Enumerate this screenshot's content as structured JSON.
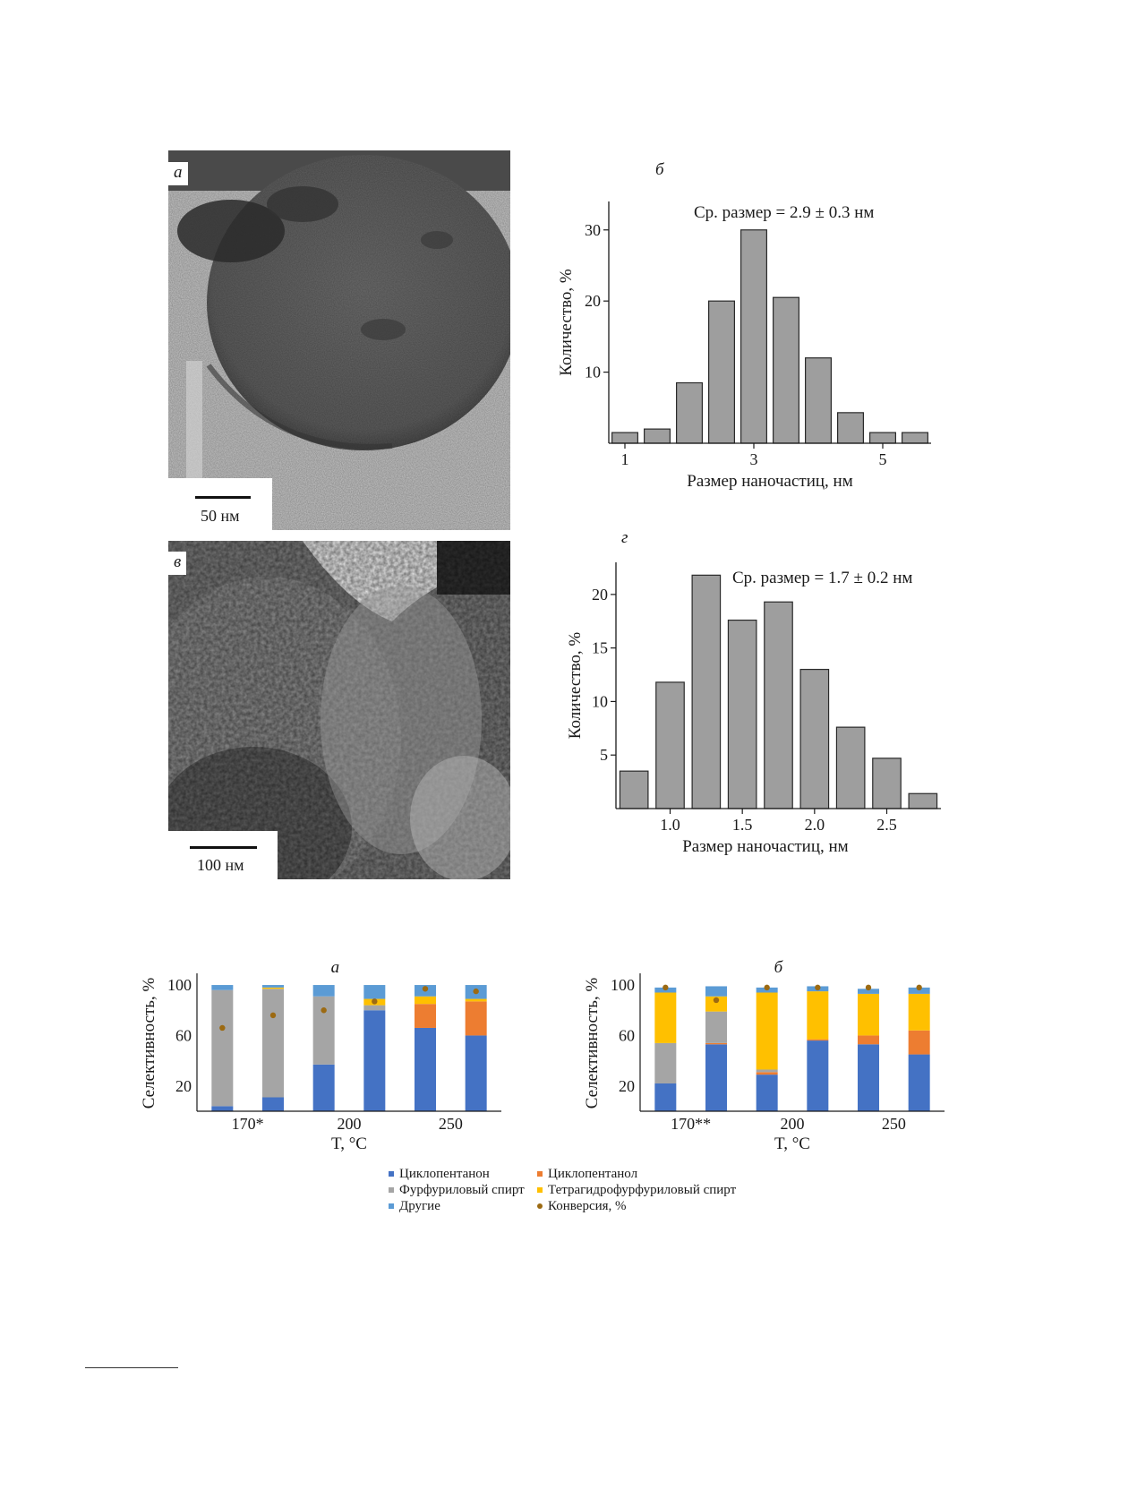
{
  "figure1": {
    "panels": [
      {
        "letter": "а",
        "scale_label": "50 нм"
      },
      {
        "letter": "б"
      },
      {
        "letter": "в",
        "scale_label": "100 нм"
      },
      {
        "letter": "г"
      }
    ]
  },
  "figure2": {
    "legend": [
      {
        "label": "Циклопентанон",
        "color": "#4472c4",
        "kind": "bar"
      },
      {
        "label": "Циклопентанол",
        "color": "#ed7d31",
        "kind": "bar"
      },
      {
        "label": "Фурфуриловый спирт",
        "color": "#a5a5a5",
        "kind": "bar"
      },
      {
        "label": "Тетрагидрофурфуриловый спирт",
        "color": "#ffc000",
        "kind": "bar"
      },
      {
        "label": "Другие",
        "color": "#5b9bd5",
        "kind": "bar"
      },
      {
        "label": "Конверсия, %",
        "color": "#9c6a12",
        "kind": "dot"
      }
    ]
  },
  "chart_data": [
    {
      "id": "hist-b",
      "type": "bar",
      "panel_letter": "б",
      "annotation": "Ср. размер = 2.9 ± 0.3 нм",
      "xlabel": "Размер наночастиц, нм",
      "ylabel": "Количество, %",
      "x": [
        1.0,
        1.5,
        2.0,
        2.5,
        3.0,
        3.5,
        4.0,
        4.5,
        5.0,
        5.5
      ],
      "values": [
        1.5,
        2.0,
        8.5,
        20.0,
        30.0,
        20.5,
        12.0,
        4.3,
        1.5,
        1.5
      ],
      "xticks": [
        1,
        3,
        5
      ],
      "yticks": [
        10,
        20,
        30
      ],
      "xlim": [
        0.75,
        5.75
      ],
      "ylim": [
        0,
        34
      ],
      "bar_color": "#9e9e9e"
    },
    {
      "id": "hist-g",
      "type": "bar",
      "panel_letter": "г",
      "annotation": "Ср. размер = 1.7 ± 0.2 нм",
      "xlabel": "Размер наночастиц, нм",
      "ylabel": "Количество, %",
      "x": [
        0.75,
        1.0,
        1.25,
        1.5,
        1.75,
        2.0,
        2.25,
        2.5,
        2.75
      ],
      "values": [
        3.5,
        11.8,
        21.8,
        17.6,
        19.3,
        13.0,
        7.6,
        4.7,
        1.4
      ],
      "xticks": [
        "1.0",
        "1.5",
        "2.0",
        "2.5"
      ],
      "yticks": [
        5,
        10,
        15,
        20
      ],
      "xlim": [
        0.625,
        2.875
      ],
      "ylim": [
        0,
        23
      ],
      "bar_color": "#9e9e9e"
    },
    {
      "id": "sel-a",
      "type": "bar",
      "stacked": true,
      "panel_letter": "а",
      "xlabel": "T, °C",
      "ylabel": "Селективность, %",
      "xtick_labels": [
        "170*",
        "200",
        "250"
      ],
      "yticks": [
        20,
        60,
        100
      ],
      "ylim": [
        0,
        105
      ],
      "n_bars": 6,
      "series": [
        {
          "name": "Циклопентанон",
          "values": [
            4,
            11,
            37,
            80,
            66,
            60
          ]
        },
        {
          "name": "Циклопентанол",
          "values": [
            0,
            0,
            0,
            0,
            19,
            27
          ]
        },
        {
          "name": "Фурфуриловый спирт",
          "values": [
            92,
            86,
            54,
            4,
            0,
            0
          ]
        },
        {
          "name": "Тетрагидрофурфуриловый спирт",
          "values": [
            0,
            1,
            0,
            5,
            6,
            2
          ]
        },
        {
          "name": "Другие",
          "values": [
            4,
            2,
            9,
            11,
            9,
            11
          ]
        }
      ],
      "conversion": [
        66,
        76,
        80,
        87,
        97,
        95
      ]
    },
    {
      "id": "sel-b",
      "type": "bar",
      "stacked": true,
      "panel_letter": "б",
      "xlabel": "T, °C",
      "ylabel": "Селективность, %",
      "xtick_labels": [
        "170**",
        "200",
        "250"
      ],
      "yticks": [
        20,
        60,
        100
      ],
      "ylim": [
        0,
        105
      ],
      "n_bars": 6,
      "series": [
        {
          "name": "Циклопентанон",
          "values": [
            22,
            53,
            29,
            56,
            53,
            45
          ]
        },
        {
          "name": "Циклопентанол",
          "values": [
            0,
            1,
            2,
            1,
            7,
            19
          ]
        },
        {
          "name": "Фурфуриловый спирт",
          "values": [
            32,
            25,
            2,
            0,
            0,
            0
          ]
        },
        {
          "name": "Тетрагидрофурфуриловый спирт",
          "values": [
            40,
            12,
            61,
            38,
            33,
            29
          ]
        },
        {
          "name": "Другие",
          "values": [
            4,
            8,
            4,
            4,
            4,
            5
          ]
        }
      ],
      "conversion": [
        98,
        88,
        98,
        98,
        98,
        98
      ]
    }
  ]
}
